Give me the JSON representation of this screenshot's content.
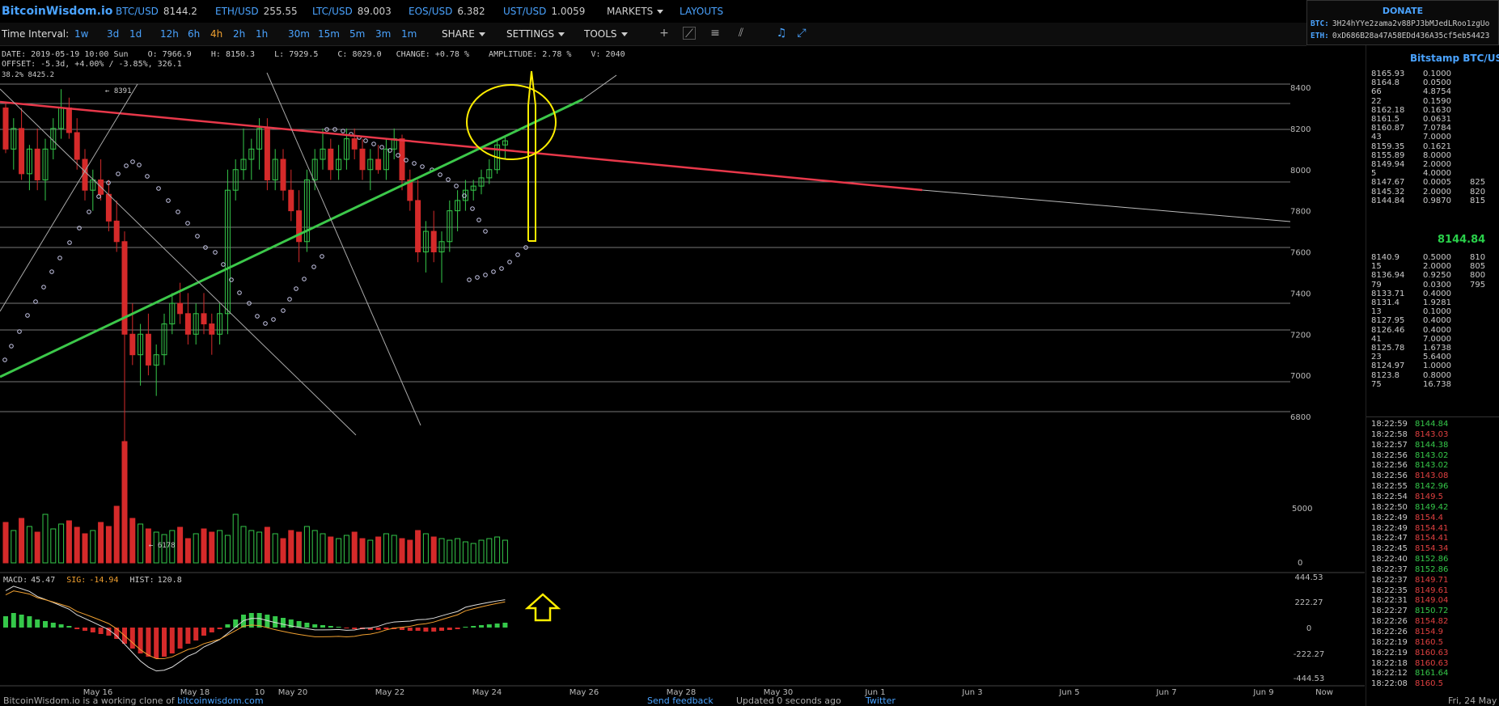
{
  "app": {
    "logo": "BitcoinWisdom.io"
  },
  "tickers": [
    {
      "symbol": "BTC/USD",
      "price": "8144.2"
    },
    {
      "symbol": "ETH/USD",
      "price": "255.55"
    },
    {
      "symbol": "LTC/USD",
      "price": "89.003"
    },
    {
      "symbol": "EOS/USD",
      "price": "6.382"
    },
    {
      "symbol": "UST/USD",
      "price": "1.0059"
    }
  ],
  "menus": {
    "markets": "MARKETS",
    "layouts": "LAYOUTS"
  },
  "donate": {
    "title": "DONATE",
    "btc_label": "BTC:",
    "btc_addr": "3H24hYYe2zama2v88PJ3bMJedLRoo1zgUo",
    "eth_label": "ETH:",
    "eth_addr": "0xD686B28a47A58EDd436A35cf5eb54423"
  },
  "toolbar": {
    "interval_label": "Time Interval:",
    "intervals": [
      "1w",
      "3d",
      "1d",
      "12h",
      "6h",
      "4h",
      "2h",
      "1h",
      "30m",
      "15m",
      "5m",
      "3m",
      "1m"
    ],
    "active_interval": "4h",
    "share": "SHARE",
    "settings": "SETTINGS",
    "tools": "TOOLS"
  },
  "info": {
    "line1": "DATE: 2019-05-19 10:00 Sun    O: 7966.9    H: 8150.3    L: 7929.5    C: 8029.0   CHANGE: +0.78 %    AMPLITUDE: 2.78 %    V: 2040",
    "line2": "OFFSET: -5.3d, +4.00% / -3.85%, 326.1",
    "line3": "38.2% 8425.2"
  },
  "chart_data": {
    "type": "candlestick",
    "price_axis": {
      "ticks": [
        "8400",
        "8200",
        "8000",
        "7800",
        "7600",
        "7400",
        "7200",
        "7000",
        "6800"
      ],
      "range": [
        6700,
        8500
      ]
    },
    "volume_axis": {
      "ticks": [
        "5000",
        "0"
      ]
    },
    "macd_axis": {
      "ticks": [
        "444.53",
        "222.27",
        "0",
        "-222.27",
        "-444.53"
      ]
    },
    "x_ticks": [
      "May 16",
      "May 18",
      "10",
      "May 20",
      "May 22",
      "May 24",
      "May 26",
      "May 28",
      "May 30",
      "Jun 1",
      "Jun 3",
      "Jun 5",
      "Jun 7",
      "Jun 9",
      "Now"
    ],
    "annotations": {
      "high": "8391",
      "low_volume_label": "6178"
    },
    "macd": {
      "macd_label": "MACD:",
      "macd": "45.47",
      "sig_label": "SIG:",
      "sig": "-14.94",
      "hist_label": "HIST:",
      "hist": "120.8"
    },
    "colors": {
      "up": "#35c84a",
      "down": "#d52a2a",
      "trend_red": "#e8384a",
      "trend_green": "#3cc84a",
      "highlight": "#ffee00"
    }
  },
  "sidebar": {
    "market_name": "Bitstamp BTC/USD",
    "asks": [
      {
        "price": "8165.93",
        "amount": "0.1000",
        "cum": ""
      },
      {
        "price": "8164.8",
        "amount": "0.0500",
        "cum": ""
      },
      {
        "price": "66",
        "amount": "4.8754",
        "cum": ""
      },
      {
        "price": "22",
        "amount": "0.1590",
        "cum": ""
      },
      {
        "price": "8162.18",
        "amount": "0.1630",
        "cum": ""
      },
      {
        "price": "8161.5",
        "amount": "0.0631",
        "cum": ""
      },
      {
        "price": "8160.87",
        "amount": "7.0784",
        "cum": ""
      },
      {
        "price": "43",
        "amount": "7.0000",
        "cum": ""
      },
      {
        "price": "8159.35",
        "amount": "0.1621",
        "cum": ""
      },
      {
        "price": "8155.89",
        "amount": "8.0000",
        "cum": ""
      },
      {
        "price": "8149.94",
        "amount": "2.0000",
        "cum": ""
      },
      {
        "price": "5",
        "amount": "4.0000",
        "cum": ""
      },
      {
        "price": "8147.67",
        "amount": "0.0005",
        "cum": "825"
      },
      {
        "price": "8145.32",
        "amount": "2.0000",
        "cum": "820"
      },
      {
        "price": "8144.84",
        "amount": "0.9870",
        "cum": "815"
      }
    ],
    "last_price": "8144.84",
    "bids": [
      {
        "price": "8140.9",
        "amount": "0.5000",
        "cum": "810"
      },
      {
        "price": "15",
        "amount": "2.0000",
        "cum": "805"
      },
      {
        "price": "8136.94",
        "amount": "0.9250",
        "cum": "800"
      },
      {
        "price": "79",
        "amount": "0.0300",
        "cum": "795"
      },
      {
        "price": "8133.71",
        "amount": "0.4000",
        "cum": ""
      },
      {
        "price": "8131.4",
        "amount": "1.9281",
        "cum": ""
      },
      {
        "price": "13",
        "amount": "0.1000",
        "cum": ""
      },
      {
        "price": "8127.95",
        "amount": "0.4000",
        "cum": ""
      },
      {
        "price": "8126.46",
        "amount": "0.4000",
        "cum": ""
      },
      {
        "price": "41",
        "amount": "7.0000",
        "cum": ""
      },
      {
        "price": "8125.78",
        "amount": "1.6738",
        "cum": ""
      },
      {
        "price": "23",
        "amount": "5.6400",
        "cum": ""
      },
      {
        "price": "8124.97",
        "amount": "1.0000",
        "cum": ""
      },
      {
        "price": "8123.8",
        "amount": "0.8000",
        "cum": ""
      },
      {
        "price": "75",
        "amount": "16.738",
        "cum": ""
      }
    ],
    "trades": [
      {
        "time": "18:22:59",
        "price": "8144.84",
        "dir": "up"
      },
      {
        "time": "18:22:58",
        "price": "8143.03",
        "dir": "dn"
      },
      {
        "time": "18:22:57",
        "price": "8144.38",
        "dir": "up"
      },
      {
        "time": "18:22:56",
        "price": "8143.02",
        "dir": "up"
      },
      {
        "time": "18:22:56",
        "price": "8143.02",
        "dir": "up"
      },
      {
        "time": "18:22:56",
        "price": "8143.08",
        "dir": "dn"
      },
      {
        "time": "18:22:55",
        "price": "8142.96",
        "dir": "up"
      },
      {
        "time": "18:22:54",
        "price": "8149.5",
        "dir": "dn"
      },
      {
        "time": "18:22:50",
        "price": "8149.42",
        "dir": "up"
      },
      {
        "time": "18:22:49",
        "price": "8154.4",
        "dir": "dn"
      },
      {
        "time": "18:22:49",
        "price": "8154.41",
        "dir": "dn"
      },
      {
        "time": "18:22:47",
        "price": "8154.41",
        "dir": "dn"
      },
      {
        "time": "18:22:45",
        "price": "8154.34",
        "dir": "dn"
      },
      {
        "time": "18:22:40",
        "price": "8152.86",
        "dir": "up"
      },
      {
        "time": "18:22:37",
        "price": "8152.86",
        "dir": "up"
      },
      {
        "time": "18:22:37",
        "price": "8149.71",
        "dir": "dn"
      },
      {
        "time": "18:22:35",
        "price": "8149.61",
        "dir": "dn"
      },
      {
        "time": "18:22:31",
        "price": "8149.04",
        "dir": "dn"
      },
      {
        "time": "18:22:27",
        "price": "8150.72",
        "dir": "up"
      },
      {
        "time": "18:22:26",
        "price": "8154.82",
        "dir": "dn"
      },
      {
        "time": "18:22:26",
        "price": "8154.9",
        "dir": "dn"
      },
      {
        "time": "18:22:19",
        "price": "8160.5",
        "dir": "dn"
      },
      {
        "time": "18:22:19",
        "price": "8160.63",
        "dir": "dn"
      },
      {
        "time": "18:22:18",
        "price": "8160.63",
        "dir": "dn"
      },
      {
        "time": "18:22:12",
        "price": "8161.64",
        "dir": "up"
      },
      {
        "time": "18:22:08",
        "price": "8160.5",
        "dir": "dn"
      }
    ]
  },
  "footer": {
    "text": "BitcoinWisdom.io is a working clone of",
    "link": "bitcoinwisdom.com",
    "feedback": "Send feedback",
    "updated": "Updated 0 seconds ago",
    "twitter": "Twitter",
    "date": "Fri, 24 May"
  }
}
